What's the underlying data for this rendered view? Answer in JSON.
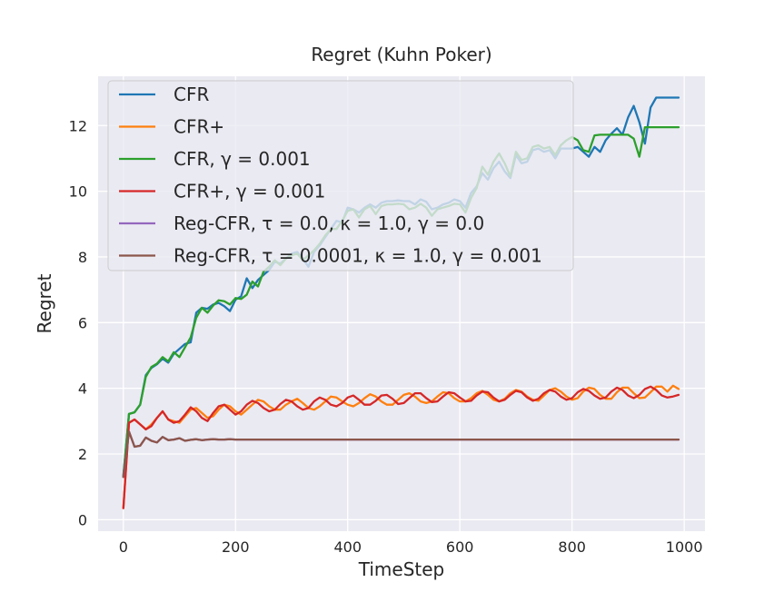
{
  "chart_data": {
    "type": "line",
    "title": "Regret (Kuhn Poker)",
    "xlabel": "TimeStep",
    "ylabel": "Regret",
    "xlim": [
      -45,
      1037
    ],
    "ylim": [
      -0.35,
      13.5
    ],
    "xticks": [
      0,
      200,
      400,
      600,
      800,
      1000
    ],
    "yticks": [
      0,
      2,
      4,
      6,
      8,
      10,
      12
    ],
    "grid": true,
    "background": "#eaeaf2",
    "legend_position": "upper-left",
    "series": [
      {
        "name": "CFR",
        "color": "#1f77b4",
        "x": [
          0,
          10,
          20,
          30,
          40,
          50,
          60,
          70,
          80,
          90,
          100,
          110,
          120,
          130,
          140,
          150,
          160,
          170,
          180,
          190,
          200,
          210,
          220,
          230,
          240,
          250,
          260,
          270,
          280,
          290,
          300,
          310,
          320,
          330,
          340,
          350,
          360,
          370,
          380,
          390,
          400,
          410,
          420,
          430,
          440,
          450,
          460,
          470,
          480,
          490,
          500,
          510,
          520,
          530,
          540,
          550,
          560,
          570,
          580,
          590,
          600,
          610,
          620,
          630,
          640,
          650,
          660,
          670,
          680,
          690,
          700,
          710,
          720,
          730,
          740,
          750,
          760,
          770,
          780,
          790,
          800,
          810,
          820,
          830,
          840,
          850,
          860,
          870,
          880,
          890,
          900,
          910,
          920,
          930,
          940,
          950,
          960,
          970,
          980,
          990
        ],
        "y": [
          1.35,
          3.22,
          3.27,
          3.5,
          4.4,
          4.62,
          4.73,
          4.9,
          4.78,
          5.05,
          5.2,
          5.35,
          5.4,
          6.3,
          6.45,
          6.42,
          6.55,
          6.6,
          6.5,
          6.35,
          6.7,
          6.8,
          7.35,
          7.05,
          7.3,
          7.45,
          7.6,
          7.85,
          7.8,
          7.95,
          8.1,
          8.15,
          7.95,
          7.7,
          8.15,
          8.35,
          8.6,
          8.85,
          9.1,
          9.05,
          9.5,
          9.45,
          9.35,
          9.5,
          9.6,
          9.5,
          9.65,
          9.7,
          9.7,
          9.72,
          9.7,
          9.7,
          9.6,
          9.75,
          9.68,
          9.45,
          9.5,
          9.6,
          9.65,
          9.75,
          9.7,
          9.5,
          9.95,
          10.15,
          10.55,
          10.35,
          10.7,
          10.9,
          10.6,
          10.4,
          11.1,
          10.85,
          10.9,
          11.25,
          11.3,
          11.2,
          11.25,
          11.0,
          11.3,
          11.3,
          11.3,
          11.35,
          11.2,
          11.05,
          11.35,
          11.2,
          11.55,
          11.75,
          11.92,
          11.72,
          12.25,
          12.6,
          12.1,
          11.45,
          12.55,
          12.85,
          12.85,
          12.85,
          12.85,
          12.85
        ]
      },
      {
        "name": "CFR+",
        "color": "#ff7f0e",
        "x": [
          0,
          10,
          20,
          30,
          40,
          50,
          60,
          70,
          80,
          90,
          100,
          110,
          120,
          130,
          140,
          150,
          160,
          170,
          180,
          190,
          200,
          210,
          220,
          230,
          240,
          250,
          260,
          270,
          280,
          290,
          300,
          310,
          320,
          330,
          340,
          350,
          360,
          370,
          380,
          390,
          400,
          410,
          420,
          430,
          440,
          450,
          460,
          470,
          480,
          490,
          500,
          510,
          520,
          530,
          540,
          550,
          560,
          570,
          580,
          590,
          600,
          610,
          620,
          630,
          640,
          650,
          660,
          670,
          680,
          690,
          700,
          710,
          720,
          730,
          740,
          750,
          760,
          770,
          780,
          790,
          800,
          810,
          820,
          830,
          840,
          850,
          860,
          870,
          880,
          890,
          900,
          910,
          920,
          930,
          940,
          950,
          960,
          970,
          980,
          990
        ],
        "y": [
          0.35,
          2.95,
          3.05,
          2.9,
          2.75,
          2.9,
          3.1,
          3.3,
          3.05,
          3.0,
          2.95,
          3.15,
          3.35,
          3.4,
          3.25,
          3.1,
          3.15,
          3.35,
          3.5,
          3.45,
          3.3,
          3.2,
          3.35,
          3.5,
          3.65,
          3.6,
          3.45,
          3.35,
          3.35,
          3.5,
          3.6,
          3.68,
          3.55,
          3.4,
          3.35,
          3.45,
          3.6,
          3.75,
          3.72,
          3.6,
          3.5,
          3.45,
          3.55,
          3.7,
          3.82,
          3.75,
          3.6,
          3.5,
          3.5,
          3.65,
          3.8,
          3.85,
          3.75,
          3.6,
          3.55,
          3.6,
          3.75,
          3.88,
          3.85,
          3.7,
          3.6,
          3.6,
          3.7,
          3.85,
          3.92,
          3.8,
          3.65,
          3.6,
          3.68,
          3.85,
          3.95,
          3.9,
          3.75,
          3.65,
          3.62,
          3.78,
          3.95,
          4.0,
          3.9,
          3.75,
          3.65,
          3.7,
          3.9,
          4.02,
          3.98,
          3.8,
          3.68,
          3.68,
          3.88,
          4.02,
          4.02,
          3.85,
          3.7,
          3.72,
          3.88,
          4.05,
          4.05,
          3.9,
          4.08,
          3.98
        ]
      },
      {
        "name": "CFR, γ = 0.001",
        "color": "#2ca02c",
        "x": [
          0,
          10,
          20,
          30,
          40,
          50,
          60,
          70,
          80,
          90,
          100,
          110,
          120,
          130,
          140,
          150,
          160,
          170,
          180,
          190,
          200,
          210,
          220,
          230,
          240,
          250,
          260,
          270,
          280,
          290,
          300,
          310,
          320,
          330,
          340,
          350,
          360,
          370,
          380,
          390,
          400,
          410,
          420,
          430,
          440,
          450,
          460,
          470,
          480,
          490,
          500,
          510,
          520,
          530,
          540,
          550,
          560,
          570,
          580,
          590,
          600,
          610,
          620,
          630,
          640,
          650,
          660,
          670,
          680,
          690,
          700,
          710,
          720,
          730,
          740,
          750,
          760,
          770,
          780,
          790,
          800,
          810,
          820,
          830,
          840,
          850,
          860,
          870,
          880,
          890,
          900,
          910,
          920,
          930,
          940,
          950,
          960,
          970,
          980,
          990
        ],
        "y": [
          1.3,
          3.22,
          3.27,
          3.5,
          4.35,
          4.65,
          4.75,
          4.95,
          4.82,
          5.1,
          4.95,
          5.25,
          5.55,
          6.15,
          6.45,
          6.3,
          6.52,
          6.68,
          6.65,
          6.55,
          6.75,
          6.72,
          6.85,
          7.25,
          7.1,
          7.55,
          7.7,
          7.9,
          7.75,
          7.95,
          8.05,
          8.1,
          7.9,
          8.05,
          8.2,
          8.4,
          8.65,
          8.85,
          8.85,
          9.1,
          9.4,
          9.45,
          9.2,
          9.45,
          9.55,
          9.3,
          9.55,
          9.6,
          9.6,
          9.62,
          9.6,
          9.45,
          9.5,
          9.62,
          9.5,
          9.25,
          9.45,
          9.5,
          9.55,
          9.62,
          9.6,
          9.35,
          9.8,
          10.1,
          10.75,
          10.5,
          10.9,
          11.15,
          10.85,
          10.45,
          11.2,
          10.95,
          11.0,
          11.35,
          11.4,
          11.3,
          11.35,
          11.1,
          11.4,
          11.55,
          11.65,
          11.55,
          11.25,
          11.2,
          11.7,
          11.72,
          11.72,
          11.72,
          11.72,
          11.72,
          11.72,
          11.6,
          11.05,
          11.95,
          11.95,
          11.95,
          11.95,
          11.95,
          11.95,
          11.95
        ]
      },
      {
        "name": "CFR+, γ = 0.001",
        "color": "#d62728",
        "x": [
          0,
          10,
          20,
          30,
          40,
          50,
          60,
          70,
          80,
          90,
          100,
          110,
          120,
          130,
          140,
          150,
          160,
          170,
          180,
          190,
          200,
          210,
          220,
          230,
          240,
          250,
          260,
          270,
          280,
          290,
          300,
          310,
          320,
          330,
          340,
          350,
          360,
          370,
          380,
          390,
          400,
          410,
          420,
          430,
          440,
          450,
          460,
          470,
          480,
          490,
          500,
          510,
          520,
          530,
          540,
          550,
          560,
          570,
          580,
          590,
          600,
          610,
          620,
          630,
          640,
          650,
          660,
          670,
          680,
          690,
          700,
          710,
          720,
          730,
          740,
          750,
          760,
          770,
          780,
          790,
          800,
          810,
          820,
          830,
          840,
          850,
          860,
          870,
          880,
          890,
          900,
          910,
          920,
          930,
          940,
          950,
          960,
          970,
          980,
          990
        ],
        "y": [
          0.35,
          2.95,
          3.05,
          2.9,
          2.75,
          2.85,
          3.1,
          3.3,
          3.05,
          2.95,
          3.0,
          3.2,
          3.42,
          3.3,
          3.1,
          3.0,
          3.25,
          3.45,
          3.5,
          3.35,
          3.2,
          3.3,
          3.5,
          3.62,
          3.55,
          3.4,
          3.3,
          3.35,
          3.52,
          3.65,
          3.6,
          3.45,
          3.35,
          3.4,
          3.6,
          3.72,
          3.65,
          3.5,
          3.45,
          3.55,
          3.72,
          3.78,
          3.65,
          3.5,
          3.5,
          3.62,
          3.78,
          3.8,
          3.68,
          3.52,
          3.55,
          3.7,
          3.85,
          3.85,
          3.7,
          3.58,
          3.6,
          3.75,
          3.88,
          3.85,
          3.72,
          3.6,
          3.62,
          3.78,
          3.9,
          3.88,
          3.72,
          3.6,
          3.65,
          3.8,
          3.92,
          3.88,
          3.72,
          3.62,
          3.68,
          3.85,
          3.95,
          3.9,
          3.75,
          3.65,
          3.7,
          3.88,
          3.98,
          3.92,
          3.78,
          3.68,
          3.72,
          3.9,
          4.02,
          3.95,
          3.78,
          3.7,
          3.8,
          3.98,
          4.05,
          3.95,
          3.78,
          3.72,
          3.75,
          3.8
        ]
      },
      {
        "name": "Reg-CFR, τ = 0.0, κ = 1.0, γ = 0.0",
        "color": "#9467bd",
        "x": [
          0,
          10,
          20,
          30,
          40,
          50,
          60,
          70,
          80,
          90,
          100,
          110,
          120,
          130,
          140,
          150,
          160,
          170,
          180,
          190,
          200,
          250,
          300,
          350,
          400,
          450,
          500,
          550,
          600,
          650,
          700,
          750,
          800,
          850,
          900,
          950,
          990
        ],
        "y": [
          1.3,
          2.68,
          2.22,
          2.25,
          2.5,
          2.4,
          2.35,
          2.52,
          2.42,
          2.44,
          2.48,
          2.4,
          2.43,
          2.45,
          2.42,
          2.44,
          2.45,
          2.44,
          2.44,
          2.45,
          2.44,
          2.44,
          2.44,
          2.44,
          2.44,
          2.44,
          2.44,
          2.44,
          2.44,
          2.44,
          2.44,
          2.44,
          2.44,
          2.44,
          2.44,
          2.44,
          2.44
        ]
      },
      {
        "name": "Reg-CFR, τ = 0.0001, κ = 1.0, γ = 0.001",
        "color": "#8c564b",
        "x": [
          0,
          10,
          20,
          30,
          40,
          50,
          60,
          70,
          80,
          90,
          100,
          110,
          120,
          130,
          140,
          150,
          160,
          170,
          180,
          190,
          200,
          250,
          300,
          350,
          400,
          450,
          500,
          550,
          600,
          650,
          700,
          750,
          800,
          850,
          900,
          950,
          990
        ],
        "y": [
          1.3,
          2.68,
          2.22,
          2.25,
          2.5,
          2.4,
          2.35,
          2.52,
          2.42,
          2.44,
          2.48,
          2.4,
          2.43,
          2.45,
          2.42,
          2.44,
          2.45,
          2.44,
          2.44,
          2.45,
          2.44,
          2.44,
          2.44,
          2.44,
          2.44,
          2.44,
          2.44,
          2.44,
          2.44,
          2.44,
          2.44,
          2.44,
          2.44,
          2.44,
          2.44,
          2.44,
          2.44
        ]
      }
    ]
  }
}
